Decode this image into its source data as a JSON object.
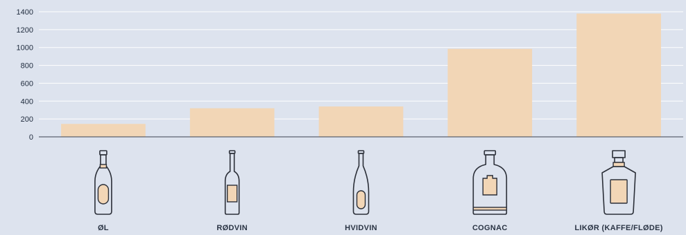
{
  "chart_data": {
    "type": "bar",
    "categories": [
      "ØL",
      "RØDVIN",
      "HVIDVIN",
      "COGNAC",
      "LIKØR (KAFFE/FLØDE)"
    ],
    "values": [
      145,
      320,
      340,
      985,
      1380
    ],
    "ylim": [
      0,
      1400
    ],
    "yticks": [
      0,
      200,
      400,
      600,
      800,
      1000,
      1200,
      1400
    ],
    "title": "",
    "xlabel": "",
    "ylabel": "",
    "grid": true,
    "icons": [
      "beer-bottle-icon",
      "red-wine-bottle-icon",
      "white-wine-bottle-icon",
      "cognac-bottle-icon",
      "liqueur-bottle-icon"
    ]
  },
  "colors": {
    "background": "#dde3ee",
    "bar": "#f2d6b6",
    "grid": "#ffffff",
    "axis": "#3a4250",
    "text": "#1e2a3c"
  }
}
